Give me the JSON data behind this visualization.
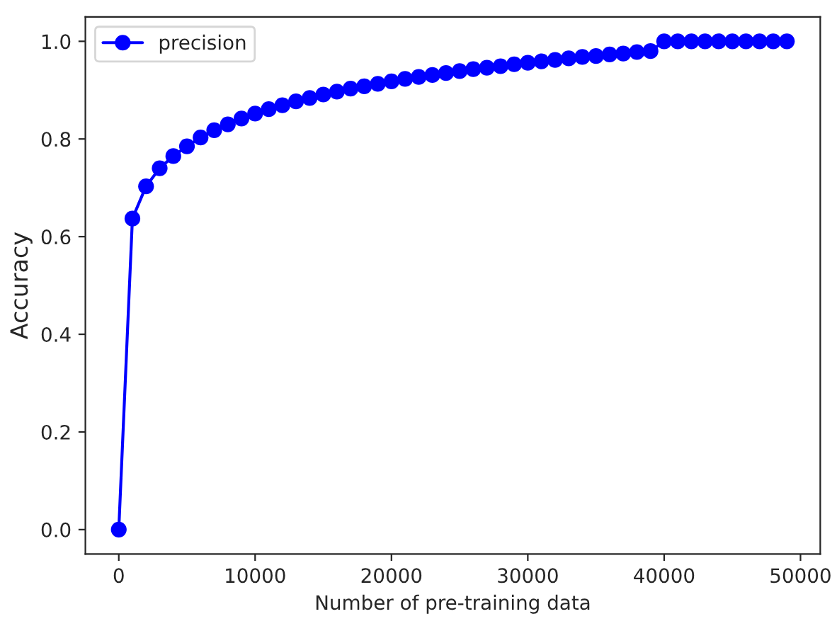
{
  "chart_data": {
    "type": "line",
    "xlabel": "Number of pre-training data",
    "ylabel": "Accuracy",
    "x": [
      0,
      1000,
      2000,
      3000,
      4000,
      5000,
      6000,
      7000,
      8000,
      9000,
      10000,
      11000,
      12000,
      13000,
      14000,
      15000,
      16000,
      17000,
      18000,
      19000,
      20000,
      21000,
      22000,
      23000,
      24000,
      25000,
      26000,
      27000,
      28000,
      29000,
      30000,
      31000,
      32000,
      33000,
      34000,
      35000,
      36000,
      37000,
      38000,
      39000,
      40000,
      41000,
      42000,
      43000,
      44000,
      45000,
      46000,
      47000,
      48000,
      49000
    ],
    "series": [
      {
        "name": "precision",
        "color": "#0000ff",
        "values": [
          0,
          0.637,
          0.703,
          0.74,
          0.765,
          0.785,
          0.803,
          0.818,
          0.83,
          0.842,
          0.852,
          0.861,
          0.869,
          0.877,
          0.884,
          0.891,
          0.897,
          0.903,
          0.908,
          0.913,
          0.918,
          0.923,
          0.927,
          0.931,
          0.935,
          0.939,
          0.943,
          0.946,
          0.949,
          0.953,
          0.956,
          0.959,
          0.962,
          0.965,
          0.968,
          0.97,
          0.973,
          0.975,
          0.978,
          0.98,
          1.0,
          1.0,
          1.0,
          1.0,
          1.0,
          1.0,
          1.0,
          1.0,
          1.0,
          1.0
        ]
      }
    ],
    "xlim": [
      -2450,
      51450
    ],
    "ylim": [
      -0.05,
      1.05
    ],
    "xticks": [
      0,
      10000,
      20000,
      30000,
      40000,
      50000
    ],
    "yticks": [
      {
        "value": 0,
        "label": "0.0"
      },
      {
        "value": 0.2,
        "label": "0.2"
      },
      {
        "value": 0.4,
        "label": "0.4"
      },
      {
        "value": 0.6,
        "label": "0.6"
      },
      {
        "value": 0.8,
        "label": "0.8"
      },
      {
        "value": 1.0,
        "label": "1.0"
      }
    ],
    "legend": "top left",
    "marker": "circle",
    "line_style": "solid",
    "grid": false
  }
}
